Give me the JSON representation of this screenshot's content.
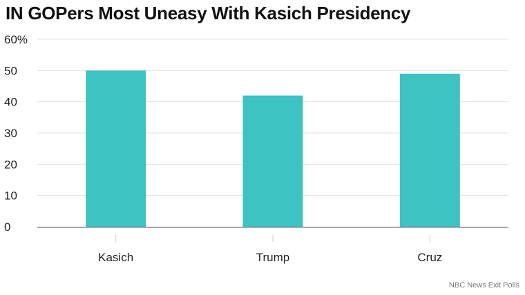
{
  "chart_data": {
    "type": "bar",
    "title": "IN GOPers Most Uneasy With Kasich Presidency",
    "categories": [
      "Kasich",
      "Trump",
      "Cruz"
    ],
    "values": [
      50,
      42,
      49
    ],
    "ylim": [
      0,
      60
    ],
    "yticks": [
      0,
      10,
      20,
      30,
      40,
      50,
      60
    ],
    "ytick_labels": [
      "0",
      "10",
      "20",
      "30",
      "40",
      "50",
      "60%"
    ],
    "xlabel": "",
    "ylabel": "",
    "grid": true,
    "legend": "none",
    "bar_color": "#3dc3c1",
    "source": "NBC News Exit Polls"
  }
}
